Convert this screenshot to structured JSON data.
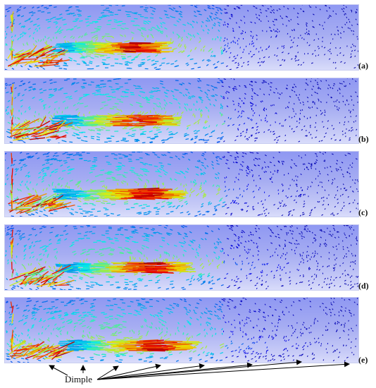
{
  "panels": [
    {
      "label": "(a)",
      "var": 0
    },
    {
      "label": "(b)",
      "var": 1
    },
    {
      "label": "(c)",
      "var": 2
    },
    {
      "label": "(d)",
      "var": 3
    },
    {
      "label": "(e)",
      "var": 4
    }
  ],
  "annotation": {
    "text": "Dimple"
  },
  "colors": {
    "background_top": "#8f98f2",
    "background_bottom": "#d9dcfa",
    "jet_low": "#1e2bd6",
    "jet_mid_low": "#19c8f0",
    "jet_mid": "#2ee85a",
    "jet_mid_high": "#e8e820",
    "jet_high": "#e82020"
  }
}
